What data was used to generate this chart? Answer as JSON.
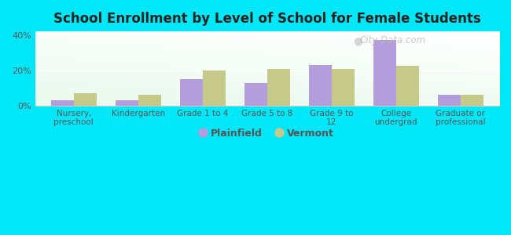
{
  "title": "School Enrollment by Level of School for Female Students",
  "categories": [
    "Nursery,\npreschool",
    "Kindergarten",
    "Grade 1 to 4",
    "Grade 5 to 8",
    "Grade 9 to\n12",
    "College\nundergrad",
    "Graduate or\nprofessional"
  ],
  "plainfield": [
    3.0,
    3.0,
    15.0,
    13.0,
    23.0,
    37.0,
    6.0
  ],
  "vermont": [
    7.0,
    6.0,
    20.0,
    21.0,
    21.0,
    22.5,
    6.0
  ],
  "plainfield_color": "#b39ddb",
  "vermont_color": "#c5c98a",
  "background_outer": "#00e8f8",
  "ylim": [
    0,
    42
  ],
  "yticks": [
    0,
    20,
    40
  ],
  "ytick_labels": [
    "0%",
    "20%",
    "40%"
  ],
  "legend_plainfield": "Plainfield",
  "legend_vermont": "Vermont",
  "title_fontsize": 12,
  "bar_width": 0.35,
  "watermark": "City-Data.com",
  "watermark_color": "#bbbbbb"
}
